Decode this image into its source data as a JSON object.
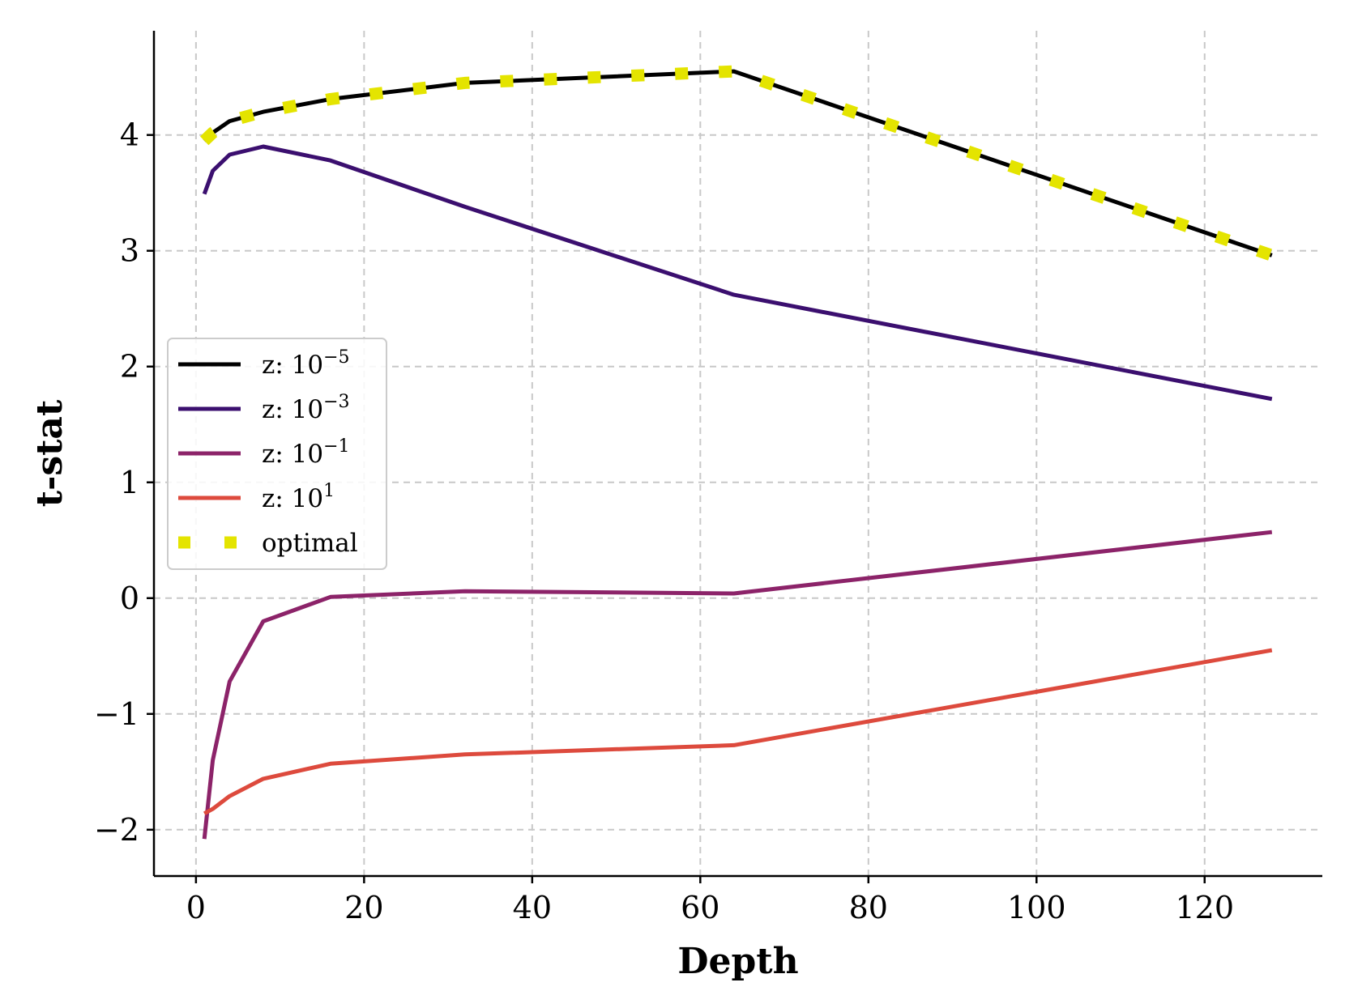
{
  "chart_data": {
    "type": "line",
    "title": "",
    "xlabel": "Depth",
    "ylabel": "t-stat",
    "xlim": [
      -5,
      134
    ],
    "ylim": [
      -2.4,
      4.9
    ],
    "xticks": [
      0,
      20,
      40,
      60,
      80,
      100,
      120
    ],
    "yticks": [
      -2,
      -1,
      0,
      1,
      2,
      3,
      4
    ],
    "xtick_labels": [
      "0",
      "20",
      "40",
      "60",
      "80",
      "100",
      "120"
    ],
    "ytick_labels": [
      "−2",
      "−1",
      "0",
      "1",
      "2",
      "3",
      "4"
    ],
    "grid": true,
    "legend_position": "center-left",
    "x": [
      1,
      2,
      4,
      8,
      16,
      32,
      64,
      128
    ],
    "series": [
      {
        "name": "z: 10⁻⁵",
        "label_prefix": "z: 10",
        "label_exp": "−5",
        "color": "#000000",
        "style": "solid",
        "values": [
          3.95,
          4.02,
          4.12,
          4.2,
          4.31,
          4.45,
          4.55,
          2.96
        ]
      },
      {
        "name": "z: 10⁻³",
        "label_prefix": "z: 10",
        "label_exp": "−3",
        "color": "#3b0f6f",
        "style": "solid",
        "values": [
          3.49,
          3.69,
          3.83,
          3.9,
          3.78,
          3.38,
          2.62,
          1.72
        ]
      },
      {
        "name": "z: 10⁻¹",
        "label_prefix": "z: 10",
        "label_exp": "−1",
        "color": "#8c2369",
        "style": "solid",
        "values": [
          -2.08,
          -1.4,
          -0.72,
          -0.2,
          0.01,
          0.06,
          0.04,
          0.57
        ]
      },
      {
        "name": "z: 10¹",
        "label_prefix": "z: 10",
        "label_exp": "1",
        "color": "#dd4a3d",
        "style": "solid",
        "values": [
          -1.86,
          -1.82,
          -1.71,
          -1.56,
          -1.43,
          -1.35,
          -1.27,
          -0.45
        ]
      },
      {
        "name": "optimal",
        "label_prefix": "optimal",
        "label_exp": "",
        "color": "#e4e400",
        "style": "dotted",
        "values": [
          3.95,
          4.02,
          4.12,
          4.2,
          4.31,
          4.45,
          4.55,
          2.96
        ]
      }
    ]
  }
}
